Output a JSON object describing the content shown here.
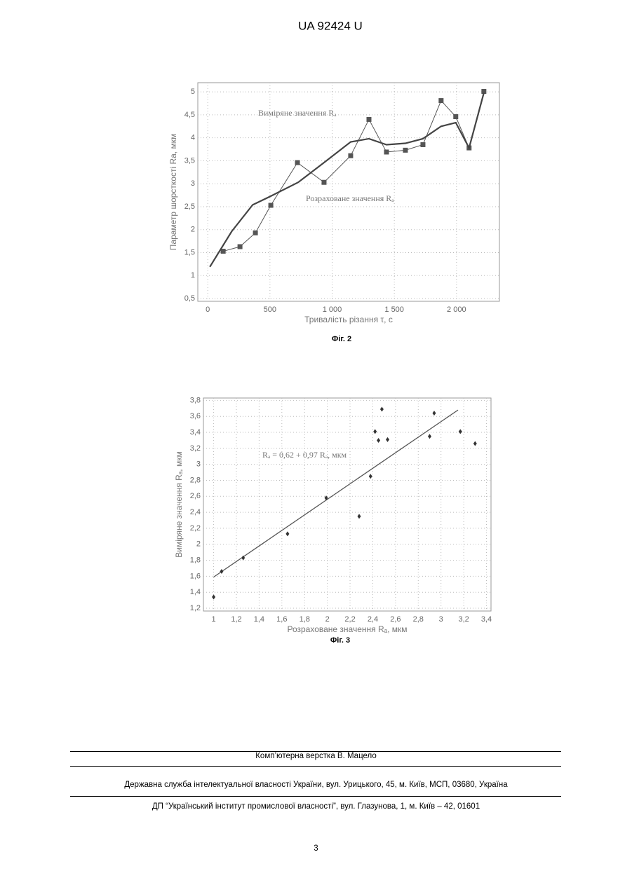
{
  "header": {
    "title": "UA   92424   U"
  },
  "chart_data": [
    {
      "type": "line",
      "caption": "Фіг. 2",
      "x_label": "Тривалість різання τ, с",
      "y_label": "Параметр шорсткості Ra, мкм",
      "xlim": [
        -80,
        2345
      ],
      "ylim": [
        0.44,
        5.2
      ],
      "xticks": [
        0,
        500,
        {
          "value": 1000,
          "label": "1 000"
        },
        {
          "value": 1500,
          "label": "1 500"
        },
        {
          "value": 2000,
          "label": "2 000"
        }
      ],
      "yticks": [
        {
          "value": 0.5,
          "label": "0,5"
        },
        1,
        {
          "value": 1.5,
          "label": "1,5"
        },
        2,
        {
          "value": 2.5,
          "label": "2,5"
        },
        3,
        {
          "value": 3.5,
          "label": "3,5"
        },
        4,
        {
          "value": 4.5,
          "label": "4,5"
        },
        5
      ],
      "grid": true,
      "annotations": [
        "Виміряне значення Rₐ",
        "Розраховане значення Rₐ"
      ],
      "series": [
        {
          "color": "#555555",
          "marker": "square",
          "x": [
            124,
            259,
            383,
            507,
            721,
            935,
            1149,
            1296,
            1437,
            1589,
            1730,
            1876,
            1994,
            2101,
            2220
          ],
          "values": [
            1.53,
            1.63,
            1.93,
            2.53,
            3.46,
            3.03,
            3.61,
            4.4,
            3.69,
            3.73,
            3.85,
            4.81,
            4.46,
            3.78,
            5.01
          ]
        },
        {
          "color": "#444444",
          "marker": "none",
          "x": [
            17,
            192,
            361,
            507,
            727,
            935,
            1149,
            1296,
            1437,
            1589,
            1730,
            1876,
            1994,
            2101,
            2220
          ],
          "values": [
            1.19,
            1.96,
            2.54,
            2.73,
            3.03,
            3.46,
            3.91,
            3.98,
            3.85,
            3.88,
            3.98,
            4.25,
            4.33,
            3.78,
            4.98
          ]
        }
      ]
    },
    {
      "type": "scatter",
      "caption": "Фіг. 3",
      "x_label": "Розраховане значення Rₐ, мкм",
      "y_label": "Виміряне значення Rₐ, мкм",
      "xlim": [
        0.91,
        3.44
      ],
      "ylim": [
        1.165,
        3.83
      ],
      "xticks": [
        1,
        {
          "value": 1.2,
          "label": "1,2"
        },
        {
          "value": 1.4,
          "label": "1,4"
        },
        {
          "value": 1.6,
          "label": "1,6"
        },
        {
          "value": 1.8,
          "label": "1,8"
        },
        2,
        {
          "value": 2.2,
          "label": "2,2"
        },
        {
          "value": 2.4,
          "label": "2,4"
        },
        {
          "value": 2.6,
          "label": "2,6"
        },
        {
          "value": 2.8,
          "label": "2,8"
        },
        3,
        {
          "value": 3.2,
          "label": "3,2"
        },
        {
          "value": 3.4,
          "label": "3,4"
        }
      ],
      "yticks": [
        {
          "value": 1.2,
          "label": "1,2"
        },
        {
          "value": 1.4,
          "label": "1,4"
        },
        {
          "value": 1.6,
          "label": "1,6"
        },
        {
          "value": 1.8,
          "label": "1,8"
        },
        2,
        {
          "value": 2.2,
          "label": "2,2"
        },
        {
          "value": 2.4,
          "label": "2,4"
        },
        {
          "value": 2.6,
          "label": "2,6"
        },
        {
          "value": 2.8,
          "label": "2,8"
        },
        3,
        {
          "value": 3.2,
          "label": "3,2"
        },
        {
          "value": 3.4,
          "label": "3,4"
        },
        {
          "value": 3.6,
          "label": "3,6"
        },
        {
          "value": 3.8,
          "label": "3,8"
        }
      ],
      "grid": true,
      "annotations": [
        "Rₐ = 0,62 + 0,97 Rₐ, мкм"
      ],
      "color": "#333333",
      "x": [
        1.0,
        1.07,
        1.26,
        1.65,
        1.99,
        2.28,
        2.38,
        2.42,
        2.45,
        2.48,
        2.53,
        2.9,
        2.94,
        3.17,
        3.3
      ],
      "values": [
        1.34,
        1.66,
        1.83,
        2.13,
        2.58,
        2.35,
        2.85,
        3.41,
        3.3,
        3.69,
        3.31,
        3.35,
        3.64,
        3.41,
        3.26
      ],
      "fit": {
        "x": [
          1,
          3.15
        ],
        "values": [
          1.59,
          3.68
        ]
      }
    }
  ],
  "footer": {
    "layout": "Комп’ютерна верстка В. Мацело",
    "office": "Державна служба інтелектуальної власності України, вул. Урицького, 45, м. Київ, МСП, 03680, Україна",
    "institute": "ДП “Український інститут промислової власності”, вул. Глазунова, 1, м. Київ – 42, 01601",
    "page": "3"
  }
}
